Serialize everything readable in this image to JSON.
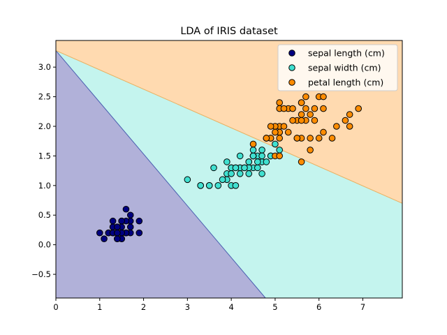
{
  "chart_data": {
    "type": "scatter",
    "title": "LDA of IRIS dataset",
    "xlabel": "",
    "ylabel": "",
    "xlim": [
      0,
      7.9
    ],
    "ylim": [
      -0.9,
      3.45
    ],
    "xticks": [
      0,
      1,
      2,
      3,
      4,
      5,
      6,
      7
    ],
    "yticks": [
      -0.5,
      0.0,
      0.5,
      1.0,
      1.5,
      2.0,
      2.5,
      3.0
    ],
    "xtick_labels": [
      "0",
      "1",
      "2",
      "3",
      "4",
      "5",
      "6",
      "7"
    ],
    "ytick_labels": [
      "−0.5",
      "0.0",
      "0.5",
      "1.0",
      "1.5",
      "2.0",
      "2.5",
      "3.0"
    ],
    "grid": false,
    "legend": "top-right",
    "regions": [
      {
        "color": "#b1b1d9",
        "polygon": [
          [
            0,
            3.28
          ],
          [
            4.78,
            -0.9
          ],
          [
            0,
            -0.9
          ]
        ]
      },
      {
        "color": "#c4f4ee",
        "polygon": [
          [
            0,
            3.28
          ],
          [
            7.9,
            0.7
          ],
          [
            7.9,
            -0.9
          ],
          [
            4.78,
            -0.9
          ]
        ]
      },
      {
        "color": "#ffdab0",
        "polygon": [
          [
            0,
            3.28
          ],
          [
            0,
            3.45
          ],
          [
            7.9,
            3.45
          ],
          [
            7.9,
            0.7
          ]
        ]
      }
    ],
    "boundaries": [
      {
        "color": "#4a5fb0",
        "from": [
          0,
          3.28
        ],
        "to": [
          4.78,
          -0.9
        ]
      },
      {
        "color": "#e8b060",
        "from": [
          0,
          3.28
        ],
        "to": [
          7.9,
          0.7
        ]
      }
    ],
    "series": [
      {
        "name": "sepal length (cm)",
        "color": "#000080",
        "points": [
          [
            1.4,
            0.2
          ],
          [
            1.4,
            0.2
          ],
          [
            1.3,
            0.2
          ],
          [
            1.5,
            0.2
          ],
          [
            1.4,
            0.2
          ],
          [
            1.7,
            0.4
          ],
          [
            1.4,
            0.3
          ],
          [
            1.5,
            0.2
          ],
          [
            1.4,
            0.2
          ],
          [
            1.5,
            0.1
          ],
          [
            1.5,
            0.2
          ],
          [
            1.6,
            0.2
          ],
          [
            1.4,
            0.1
          ],
          [
            1.1,
            0.1
          ],
          [
            1.2,
            0.2
          ],
          [
            1.5,
            0.4
          ],
          [
            1.3,
            0.4
          ],
          [
            1.4,
            0.3
          ],
          [
            1.7,
            0.3
          ],
          [
            1.5,
            0.3
          ],
          [
            1.7,
            0.2
          ],
          [
            1.5,
            0.4
          ],
          [
            1.0,
            0.2
          ],
          [
            1.7,
            0.5
          ],
          [
            1.9,
            0.2
          ],
          [
            1.6,
            0.2
          ],
          [
            1.6,
            0.4
          ],
          [
            1.5,
            0.2
          ],
          [
            1.4,
            0.2
          ],
          [
            1.6,
            0.2
          ],
          [
            1.6,
            0.2
          ],
          [
            1.5,
            0.4
          ],
          [
            1.5,
            0.1
          ],
          [
            1.4,
            0.2
          ],
          [
            1.5,
            0.2
          ],
          [
            1.2,
            0.2
          ],
          [
            1.3,
            0.2
          ],
          [
            1.4,
            0.1
          ],
          [
            1.3,
            0.2
          ],
          [
            1.5,
            0.2
          ],
          [
            1.3,
            0.3
          ],
          [
            1.3,
            0.3
          ],
          [
            1.3,
            0.2
          ],
          [
            1.6,
            0.6
          ],
          [
            1.9,
            0.4
          ],
          [
            1.4,
            0.3
          ],
          [
            1.6,
            0.2
          ],
          [
            1.4,
            0.2
          ],
          [
            1.5,
            0.2
          ],
          [
            1.4,
            0.2
          ]
        ]
      },
      {
        "name": "sepal width (cm)",
        "color": "#40e0d0",
        "points": [
          [
            4.7,
            1.4
          ],
          [
            4.5,
            1.5
          ],
          [
            4.9,
            1.5
          ],
          [
            4.0,
            1.3
          ],
          [
            4.6,
            1.5
          ],
          [
            4.5,
            1.3
          ],
          [
            4.7,
            1.6
          ],
          [
            3.3,
            1.0
          ],
          [
            4.6,
            1.3
          ],
          [
            3.9,
            1.4
          ],
          [
            3.5,
            1.0
          ],
          [
            4.2,
            1.5
          ],
          [
            4.0,
            1.0
          ],
          [
            4.7,
            1.4
          ],
          [
            3.6,
            1.3
          ],
          [
            4.4,
            1.4
          ],
          [
            4.5,
            1.5
          ],
          [
            4.1,
            1.0
          ],
          [
            4.5,
            1.5
          ],
          [
            3.9,
            1.1
          ],
          [
            4.8,
            1.8
          ],
          [
            4.0,
            1.3
          ],
          [
            4.9,
            1.5
          ],
          [
            4.7,
            1.2
          ],
          [
            4.3,
            1.3
          ],
          [
            4.4,
            1.4
          ],
          [
            4.8,
            1.4
          ],
          [
            5.0,
            1.7
          ],
          [
            4.5,
            1.5
          ],
          [
            3.5,
            1.0
          ],
          [
            3.8,
            1.1
          ],
          [
            3.7,
            1.0
          ],
          [
            3.9,
            1.2
          ],
          [
            5.1,
            1.6
          ],
          [
            4.5,
            1.5
          ],
          [
            4.5,
            1.6
          ],
          [
            4.7,
            1.5
          ],
          [
            4.4,
            1.3
          ],
          [
            4.1,
            1.3
          ],
          [
            4.0,
            1.3
          ],
          [
            4.4,
            1.2
          ],
          [
            4.6,
            1.4
          ],
          [
            4.0,
            1.2
          ],
          [
            3.3,
            1.0
          ],
          [
            4.2,
            1.3
          ],
          [
            4.2,
            1.2
          ],
          [
            4.2,
            1.3
          ],
          [
            4.3,
            1.3
          ],
          [
            3.0,
            1.1
          ],
          [
            4.1,
            1.3
          ]
        ]
      },
      {
        "name": "petal length (cm)",
        "color": "#ff8c00",
        "points": [
          [
            6.0,
            2.5
          ],
          [
            5.1,
            1.9
          ],
          [
            5.9,
            2.1
          ],
          [
            5.6,
            1.8
          ],
          [
            5.8,
            2.2
          ],
          [
            6.6,
            2.1
          ],
          [
            4.5,
            1.7
          ],
          [
            6.3,
            1.8
          ],
          [
            5.8,
            1.8
          ],
          [
            6.1,
            2.5
          ],
          [
            5.1,
            2.0
          ],
          [
            5.3,
            1.9
          ],
          [
            5.5,
            2.1
          ],
          [
            5.0,
            2.0
          ],
          [
            5.1,
            2.4
          ],
          [
            5.3,
            2.3
          ],
          [
            5.5,
            1.8
          ],
          [
            6.7,
            2.2
          ],
          [
            6.9,
            2.3
          ],
          [
            5.0,
            1.5
          ],
          [
            5.7,
            2.3
          ],
          [
            4.9,
            2.0
          ],
          [
            6.7,
            2.0
          ],
          [
            4.9,
            1.8
          ],
          [
            5.7,
            2.1
          ],
          [
            6.0,
            1.8
          ],
          [
            4.8,
            1.8
          ],
          [
            4.9,
            1.8
          ],
          [
            5.6,
            2.1
          ],
          [
            5.8,
            1.6
          ],
          [
            6.1,
            1.9
          ],
          [
            6.4,
            2.0
          ],
          [
            5.6,
            2.2
          ],
          [
            5.1,
            1.5
          ],
          [
            5.6,
            1.4
          ],
          [
            6.1,
            2.3
          ],
          [
            5.6,
            2.4
          ],
          [
            5.5,
            1.8
          ],
          [
            4.8,
            1.8
          ],
          [
            5.4,
            2.1
          ],
          [
            5.6,
            2.4
          ],
          [
            5.1,
            2.3
          ],
          [
            5.1,
            1.9
          ],
          [
            5.9,
            2.3
          ],
          [
            5.7,
            2.5
          ],
          [
            5.2,
            2.3
          ],
          [
            5.0,
            1.9
          ],
          [
            5.2,
            2.0
          ],
          [
            5.4,
            2.3
          ],
          [
            5.1,
            1.8
          ]
        ]
      }
    ]
  }
}
